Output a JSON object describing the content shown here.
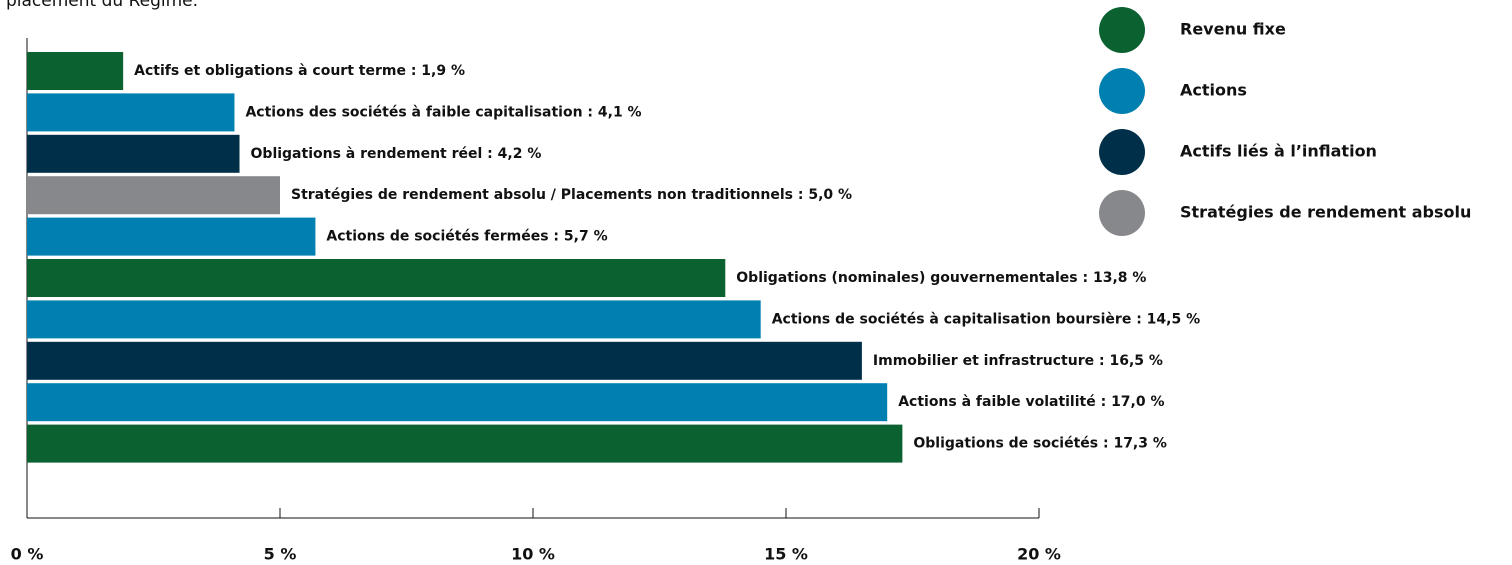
{
  "chart_data": {
    "type": "hbar",
    "subtitle": "placement du Régime.",
    "categories": [
      "Actifs et obligations à court terme : 1,9 %",
      "Actions des sociétés à faible capitalisation : 4,1 %",
      "Obligations à rendement réel : 4,2 %",
      "Stratégies de rendement absolu / Placements non traditionnels : 5,0 %",
      "Actions de sociétés fermées : 5,7 %",
      "Obligations (nominales) gouvernementales : 13,8 %",
      "Actions de sociétés à capitalisation boursière : 14,5 %",
      "Immobilier et infrastructure : 16,5 %",
      "Actions à faible volatilité : 17,0 %",
      "Obligations de sociétés : 17,3 %"
    ],
    "series": [
      {
        "name": "Revenu fixe",
        "color": "#0b6230",
        "values": [
          1.9,
          null,
          null,
          null,
          null,
          13.8,
          null,
          null,
          null,
          17.3
        ]
      },
      {
        "name": "Actions",
        "color": "#0080b0",
        "values": [
          null,
          4.1,
          null,
          null,
          5.7,
          null,
          14.5,
          null,
          17.0,
          null
        ]
      },
      {
        "name": "Actifs liés à l’inflation",
        "color": "#003049",
        "values": [
          null,
          null,
          4.2,
          null,
          null,
          null,
          null,
          16.5,
          null,
          null
        ]
      },
      {
        "name": "Stratégies de rendement absolu",
        "color": "#86888b",
        "values": [
          null,
          null,
          null,
          5.0,
          null,
          null,
          null,
          null,
          null,
          null
        ]
      }
    ],
    "xlim": [
      0,
      20
    ],
    "xticks": [
      {
        "value": 0,
        "label": "0 %"
      },
      {
        "value": 5,
        "label": "5 %"
      },
      {
        "value": 10,
        "label": "10 %"
      },
      {
        "value": 15,
        "label": "15 %"
      },
      {
        "value": 20,
        "label": "20 %"
      }
    ],
    "legend": "top-right"
  }
}
